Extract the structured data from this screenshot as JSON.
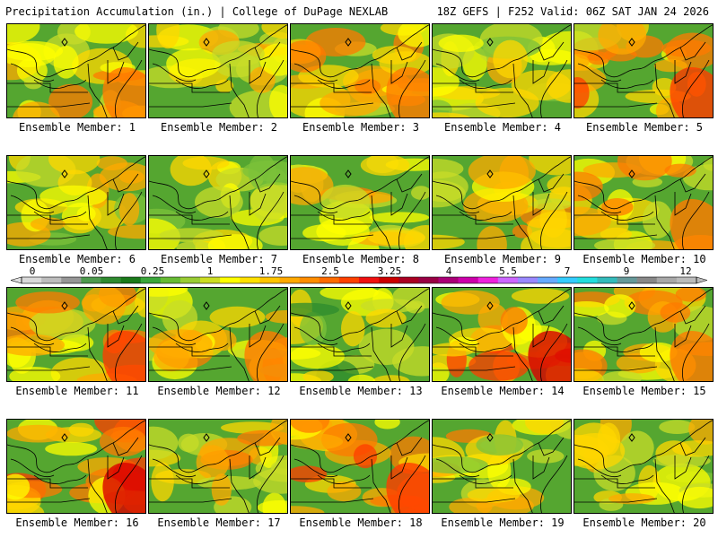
{
  "header": {
    "left": "Precipitation Accumulation (in.) | College of DuPage NEXLAB",
    "right": "18Z GEFS | F252 Valid: 06Z SAT JAN 24 2026"
  },
  "members": [
    {
      "label": "Ensemble Member: 1",
      "intensity": 0.55
    },
    {
      "label": "Ensemble Member: 2",
      "intensity": 0.5
    },
    {
      "label": "Ensemble Member: 3",
      "intensity": 0.6
    },
    {
      "label": "Ensemble Member: 4",
      "intensity": 0.35
    },
    {
      "label": "Ensemble Member: 5",
      "intensity": 0.7
    },
    {
      "label": "Ensemble Member: 6",
      "intensity": 0.4
    },
    {
      "label": "Ensemble Member: 7",
      "intensity": 0.3
    },
    {
      "label": "Ensemble Member: 8",
      "intensity": 0.45
    },
    {
      "label": "Ensemble Member: 9",
      "intensity": 0.5
    },
    {
      "label": "Ensemble Member: 10",
      "intensity": 0.55
    },
    {
      "label": "Ensemble Member: 11",
      "intensity": 0.65
    },
    {
      "label": "Ensemble Member: 12",
      "intensity": 0.55
    },
    {
      "label": "Ensemble Member: 13",
      "intensity": 0.2
    },
    {
      "label": "Ensemble Member: 14",
      "intensity": 0.8
    },
    {
      "label": "Ensemble Member: 15",
      "intensity": 0.6
    },
    {
      "label": "Ensemble Member: 16",
      "intensity": 0.75
    },
    {
      "label": "Ensemble Member: 17",
      "intensity": 0.5
    },
    {
      "label": "Ensemble Member: 18",
      "intensity": 0.7
    },
    {
      "label": "Ensemble Member: 19",
      "intensity": 0.45
    },
    {
      "label": "Ensemble Member: 20",
      "intensity": 0.3
    }
  ],
  "colorbar": {
    "tick_labels": [
      "0",
      "0.05",
      "0.25",
      "1",
      "1.75",
      "2.5",
      "3.25",
      "4",
      "5.5",
      "7",
      "9",
      "12"
    ],
    "colors": [
      "#d9d9d9",
      "#bdbdbd",
      "#969696",
      "#4d9a4d",
      "#2f8a2f",
      "#1a7a1a",
      "#3aa63a",
      "#66bb33",
      "#99cc33",
      "#ccdd22",
      "#ffff00",
      "#ffe000",
      "#ffc400",
      "#ffa800",
      "#ff8c00",
      "#ff6a00",
      "#ff4000",
      "#f01010",
      "#cc0000",
      "#aa0022",
      "#990044",
      "#aa0077",
      "#cc00aa",
      "#ee22dd",
      "#cc66ff",
      "#9988ff",
      "#66aaff",
      "#33ccff",
      "#22dddd",
      "#33bbbb",
      "#669999",
      "#888888",
      "#a8a8a8",
      "#bbbbbb"
    ]
  }
}
